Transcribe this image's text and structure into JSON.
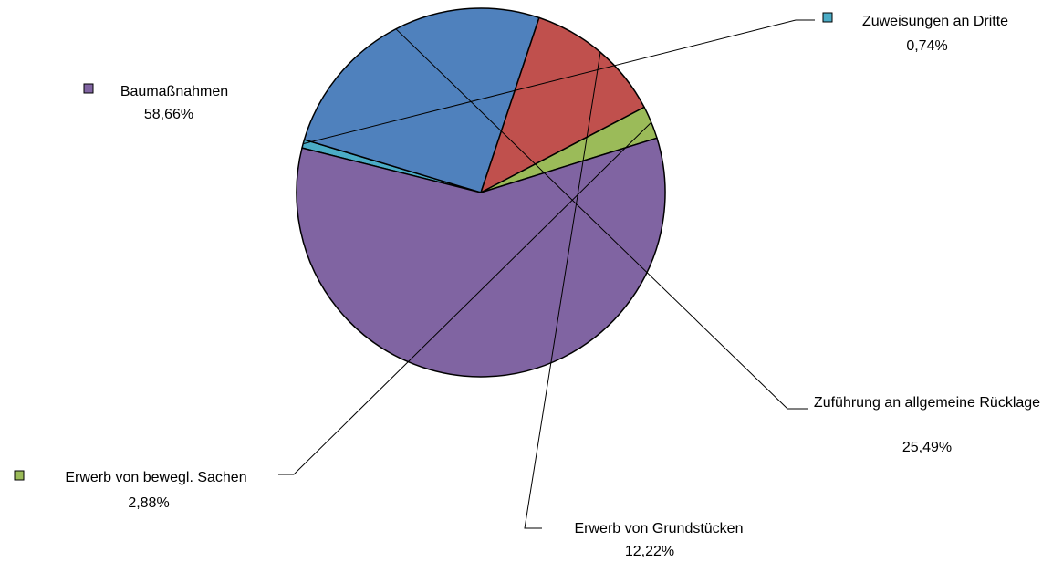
{
  "chart_data": {
    "type": "pie",
    "title": "",
    "series": [
      {
        "values": [
          {
            "label": "Zuweisungen an Dritte",
            "value": 0.74,
            "value_label": "0,74%",
            "color": "#4BACC6"
          },
          {
            "label": "Zuführung an allgemeine Rücklage",
            "value": 25.49,
            "value_label": "25,49%",
            "color": "#4F81BD"
          },
          {
            "label": "Erwerb von Grundstücken",
            "value": 12.22,
            "value_label": "12,22%",
            "color": "#C0504D"
          },
          {
            "label": "Erwerb von bewegl. Sachen",
            "value": 2.88,
            "value_label": "2,88%",
            "color": "#9BBB59"
          },
          {
            "label": "Baumaßnahmen",
            "value": 58.66,
            "value_label": "58,66%",
            "color": "#8064A2"
          }
        ]
      }
    ],
    "legend": "none"
  }
}
